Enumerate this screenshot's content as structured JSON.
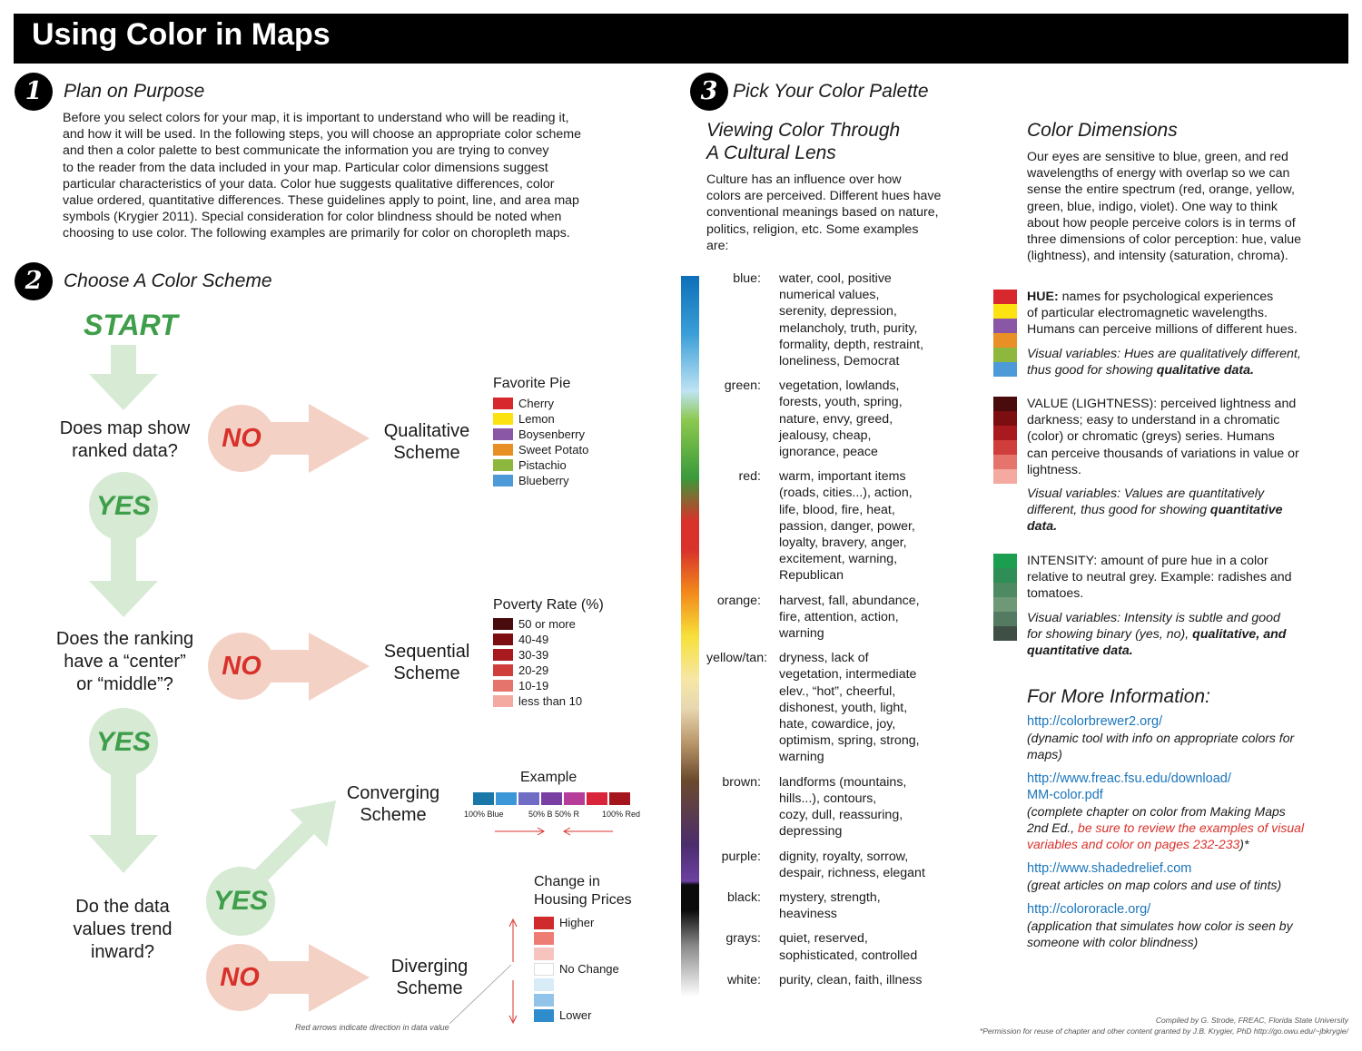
{
  "title": "Using Color in Maps",
  "step1": {
    "num": "1",
    "heading": "Plan on Purpose",
    "lines": [
      "Before you select colors for your map, it is important to understand who will be reading it,",
      "and how it will be used. In the following steps, you will choose an appropriate color scheme",
      "and then a color palette to best communicate the information you are trying to convey",
      "to the reader from the data included in your map. Particular color dimensions suggest",
      "particular characteristics of your data. Color hue suggests qualitative differences, color",
      "value ordered, quantitative differences. These guidelines apply to point, line, and area map",
      "symbols (Krygier 2011). Special consideration for color blindness should be noted when",
      "choosing to use color. The following examples are primarily for color on choropleth maps."
    ]
  },
  "step2": {
    "num": "2",
    "heading": "Choose A Color Scheme",
    "start": "START",
    "q1": [
      "Does map show",
      "ranked data?"
    ],
    "q2": [
      "Does the ranking",
      "have a “center”",
      "or “middle”?"
    ],
    "q3": [
      "Do the data",
      "values trend",
      "inward?"
    ],
    "yes": "YES",
    "no": "NO",
    "schemes": {
      "qualitative": [
        "Qualitative",
        "Scheme"
      ],
      "sequential": [
        "Sequential",
        "Scheme"
      ],
      "converging": [
        "Converging",
        "Scheme"
      ],
      "diverging": [
        "Diverging",
        "Scheme"
      ]
    },
    "pie": {
      "title": "Favorite Pie",
      "items": [
        {
          "label": "Cherry",
          "color": "#d7282e"
        },
        {
          "label": "Lemon",
          "color": "#fde212"
        },
        {
          "label": "Boysenberry",
          "color": "#8a57a6"
        },
        {
          "label": "Sweet Potato",
          "color": "#e88f25"
        },
        {
          "label": "Pistachio",
          "color": "#8db83d"
        },
        {
          "label": "Blueberry",
          "color": "#4c9bd8"
        }
      ]
    },
    "poverty": {
      "title": "Poverty Rate (%)",
      "items": [
        {
          "label": "50 or more",
          "color": "#4a0b0d"
        },
        {
          "label": "40-49",
          "color": "#7c0d10"
        },
        {
          "label": "30-39",
          "color": "#a91a1e"
        },
        {
          "label": "20-29",
          "color": "#cf3e3a"
        },
        {
          "label": "10-19",
          "color": "#e5746c"
        },
        {
          "label": "less than 10",
          "color": "#f4aaa1"
        }
      ]
    },
    "converging_example": {
      "title": "Example",
      "colors": [
        "#1a77a8",
        "#3c97d8",
        "#6f6ec4",
        "#7a3fa2",
        "#b63e9a",
        "#d8253a",
        "#a5151e"
      ],
      "labels": [
        "100% Blue",
        "50% B 50% R",
        "100% Red"
      ]
    },
    "housing": {
      "title": [
        "Change in",
        "Housing Prices"
      ],
      "colors": [
        "#cf2a2c",
        "#ef7b75",
        "#f7c3bf",
        "#ffffff",
        "#d8ecf8",
        "#91c4e8",
        "#2f8ccc"
      ],
      "higher": "Higher",
      "nochange": "No Change",
      "lower": "Lower"
    },
    "arrow_note": "Red arrows indicate direction in data value"
  },
  "step3": {
    "num": "3",
    "heading": "Pick Your Color Palette",
    "cultural": {
      "title": [
        "Viewing Color Through",
        "A Cultural Lens"
      ],
      "intro": [
        "Culture has an influence over how",
        "colors are perceived. Different hues have",
        "conventional meanings based on nature,",
        "politics, religion, etc. Some examples",
        "are:"
      ],
      "entries": [
        {
          "color": "blue:",
          "lines": [
            "water, cool, positive",
            "numerical values,",
            "serenity, depression,",
            "melancholy, truth, purity,",
            "formality, depth, restraint,",
            "loneliness, Democrat"
          ]
        },
        {
          "color": "green:",
          "lines": [
            "vegetation, lowlands,",
            "forests, youth, spring,",
            "nature, envy, greed,",
            "jealousy, cheap,",
            "ignorance, peace"
          ]
        },
        {
          "color": "red:",
          "lines": [
            "warm, important items",
            "(roads, cities...), action,",
            "life, blood, fire, heat,",
            "passion, danger, power,",
            "loyalty, bravery, anger,",
            "excitement, warning,",
            "Republican"
          ]
        },
        {
          "color": "orange:",
          "lines": [
            "harvest, fall, abundance,",
            "fire, attention, action,",
            "warning"
          ]
        },
        {
          "color": "yellow/tan:",
          "lines": [
            "dryness, lack of",
            "vegetation, intermediate",
            "elev., “hot”, cheerful,",
            "dishonest, youth, light,",
            "hate, cowardice, joy,",
            "optimism, spring, strong,",
            "warning"
          ]
        },
        {
          "color": "brown:",
          "lines": [
            "landforms (mountains,",
            "hills...), contours,",
            "cozy, dull, reassuring,",
            "depressing"
          ]
        },
        {
          "color": "purple:",
          "lines": [
            "dignity, royalty, sorrow,",
            "despair, richness, elegant"
          ]
        },
        {
          "color": "black:",
          "lines": [
            "mystery, strength,",
            "heaviness"
          ]
        },
        {
          "color": "grays:",
          "lines": [
            "quiet, reserved,",
            "sophisticated, controlled"
          ]
        },
        {
          "color": "white:",
          "lines": [
            "purity, clean, faith, illness"
          ]
        }
      ]
    },
    "dimensions": {
      "title": "Color Dimensions",
      "intro": [
        "Our eyes are sensitive to blue, green, and red",
        "wavelengths of energy with overlap so we can",
        "sense the entire spectrum (red, orange, yellow,",
        "green, blue, indigo, violet). One way to think",
        "about how people perceive colors is in terms of",
        "three dimensions of color perception: hue, value",
        "(lightness), and intensity (saturation, chroma)."
      ],
      "hue": {
        "colors": [
          "#d7282e",
          "#fde212",
          "#8a57a6",
          "#e88f25",
          "#8db83d",
          "#4c9bd8"
        ],
        "key": "HUE:",
        "lines": [
          " names for psychological experiences",
          "of particular electromagnetic wavelengths.",
          "Humans can perceive millions of different hues."
        ],
        "vis": [
          "Visual variables: Hues are qualitatively different,",
          "thus good for showing "
        ],
        "vis_bold": "qualitative data."
      },
      "value": {
        "colors": [
          "#4a0b0d",
          "#7c0d10",
          "#a91a1e",
          "#cf3e3a",
          "#e5746c",
          "#f4aaa1"
        ],
        "key": "VALUE (LIGHTNESS):",
        "lines": [
          " perceived lightness and",
          "darkness; easy to understand in a chromatic",
          "(color) or chromatic (greys) series. Humans",
          "can perceive thousands of variations in value or",
          "lightness."
        ],
        "vis": [
          "Visual variables: Values are quantitatively",
          "different, thus good for showing "
        ],
        "vis_bold": [
          "quantitative",
          "data."
        ]
      },
      "intensity": {
        "colors": [
          "#1b9e4f",
          "#2f8d56",
          "#4d8a62",
          "#6f9877",
          "#557a62",
          "#3f4f46"
        ],
        "key": "INTENSITY:",
        "lines": [
          " amount of pure hue in a color",
          "relative to neutral grey. Example: radishes and",
          "tomatoes."
        ],
        "vis": [
          "Visual variables: Intensity is subtle and good",
          "for showing binary (yes, no), "
        ],
        "vis_bold": [
          "qualitative, and",
          "quantitative data."
        ]
      }
    },
    "more_info": {
      "title": "For More Information:",
      "links": [
        {
          "url": [
            "http://colorbrewer2.org/"
          ],
          "desc": [
            "(dynamic tool with info on appropriate colors for",
            "maps)"
          ]
        },
        {
          "url": [
            "http://www.freac.fsu.edu/download/",
            "MM-color.pdf"
          ],
          "desc": [
            "(complete chapter on color from Making Maps",
            "2nd Ed., "
          ],
          "desc_red": [
            "be sure to review the examples of visual",
            "variables and color on pages 232-233"
          ],
          "desc_end": ")*"
        },
        {
          "url": [
            "http://www.shadedrelief.com"
          ],
          "desc": [
            "(great articles on map colors and use of tints)"
          ]
        },
        {
          "url": [
            "http://colororacle.org/"
          ],
          "desc": [
            "(application that simulates how color is seen by",
            "someone with color blindness)"
          ]
        }
      ]
    }
  },
  "credits": [
    "Compiled by G. Strode, FREAC, Florida State University",
    "*Permission for reuse of chapter and other content granted by J.B. Krygier, PhD http://go.owu.edu/~jbkrygie/"
  ]
}
